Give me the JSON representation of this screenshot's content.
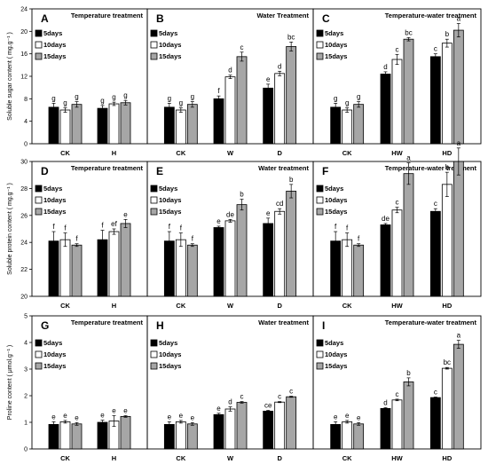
{
  "chart_data": [
    {
      "type": "bar",
      "series": [
        {
          "name": "5days"
        },
        {
          "name": "10days"
        },
        {
          "name": "15days"
        }
      ],
      "ylabel": "Soluble sugar content ( mg.g⁻¹ )",
      "ylim": [
        0,
        24
      ],
      "yticks": [
        0,
        4,
        8,
        12,
        16,
        20,
        24
      ],
      "panels": [
        {
          "label": "A",
          "title": "Temperature treatment",
          "legend": "top-left",
          "categories": [
            "CK",
            "H"
          ],
          "values": [
            [
              6.5,
              6.0,
              7.0
            ],
            [
              6.3,
              7.1,
              7.3
            ]
          ],
          "errors": [
            [
              0.7,
              0.4,
              0.5
            ],
            [
              0.5,
              0.3,
              0.4
            ]
          ],
          "letters": [
            [
              "g",
              "g",
              "g"
            ],
            [
              "g",
              "g",
              "g"
            ]
          ]
        },
        {
          "label": "B",
          "title": "Water Treatment",
          "legend": "top-left",
          "categories": [
            "CK",
            "W",
            "D"
          ],
          "values": [
            [
              6.5,
              6.0,
              7.0
            ],
            [
              8.0,
              11.9,
              15.5
            ],
            [
              9.9,
              12.5,
              17.3
            ]
          ],
          "errors": [
            [
              0.7,
              0.4,
              0.5
            ],
            [
              0.5,
              0.3,
              0.8
            ],
            [
              0.7,
              0.4,
              0.8
            ]
          ],
          "letters": [
            [
              "g",
              "g",
              "g"
            ],
            [
              "f",
              "d",
              "c"
            ],
            [
              "e",
              "d",
              "bc"
            ]
          ]
        },
        {
          "label": "C",
          "title": "Temperature-water treatment",
          "legend": "top-left",
          "categories": [
            "CK",
            "HW",
            "HD"
          ],
          "values": [
            [
              6.5,
              6.0,
              7.0
            ],
            [
              12.4,
              15.0,
              18.6
            ],
            [
              15.5,
              17.9,
              20.2
            ]
          ],
          "errors": [
            [
              0.7,
              0.4,
              0.5
            ],
            [
              0.4,
              0.9,
              0.3
            ],
            [
              0.5,
              0.7,
              1.2
            ]
          ],
          "letters": [
            [
              "g",
              "g",
              "g"
            ],
            [
              "d",
              "c",
              "bc"
            ],
            [
              "c",
              "b",
              "a"
            ]
          ]
        }
      ]
    },
    {
      "type": "bar",
      "series": [
        {
          "name": "5days"
        },
        {
          "name": "10days"
        },
        {
          "name": "15days"
        }
      ],
      "ylabel": "Soluble protein content ( mg.g⁻¹ )",
      "ylim": [
        20,
        30
      ],
      "yticks": [
        20,
        22,
        24,
        26,
        28,
        30
      ],
      "panels": [
        {
          "label": "D",
          "title": "Temperature treatment",
          "legend": "left",
          "categories": [
            "CK",
            "H"
          ],
          "values": [
            [
              24.1,
              24.2,
              23.8
            ],
            [
              24.2,
              24.8,
              25.4
            ]
          ],
          "errors": [
            [
              0.7,
              0.5,
              0.1
            ],
            [
              0.7,
              0.2,
              0.3
            ]
          ],
          "letters": [
            [
              "f",
              "f",
              "f"
            ],
            [
              "f",
              "ef",
              "e"
            ]
          ]
        },
        {
          "label": "E",
          "title": "Water treatment",
          "legend": "left",
          "categories": [
            "CK",
            "W",
            "D"
          ],
          "values": [
            [
              24.1,
              24.2,
              23.8
            ],
            [
              25.1,
              25.6,
              26.8
            ],
            [
              25.4,
              26.3,
              27.8
            ]
          ],
          "errors": [
            [
              0.7,
              0.5,
              0.1
            ],
            [
              0.1,
              0.1,
              0.4
            ],
            [
              0.4,
              0.2,
              0.5
            ]
          ],
          "letters": [
            [
              "f",
              "f",
              "f"
            ],
            [
              "e",
              "de",
              "b"
            ],
            [
              "e",
              "cd",
              "b"
            ]
          ]
        },
        {
          "label": "F",
          "title": "Temperature-water treatment",
          "legend": "left",
          "categories": [
            "CK",
            "HW",
            "HD"
          ],
          "values": [
            [
              24.1,
              24.2,
              23.8
            ],
            [
              25.3,
              26.4,
              29.1
            ],
            [
              26.3,
              28.3,
              30.0
            ]
          ],
          "errors": [
            [
              0.7,
              0.5,
              0.1
            ],
            [
              0.1,
              0.2,
              0.8
            ],
            [
              0.2,
              0.9,
              1.0
            ]
          ],
          "letters": [
            [
              "f",
              "f",
              "f"
            ],
            [
              "de",
              "c",
              "a"
            ],
            [
              "c",
              "b",
              "a"
            ]
          ]
        }
      ]
    },
    {
      "type": "bar",
      "series": [
        {
          "name": "5days"
        },
        {
          "name": "10days"
        },
        {
          "name": "15days"
        }
      ],
      "ylabel": "Proline content ( μmol.g⁻¹ )",
      "ylim": [
        0,
        5
      ],
      "yticks": [
        0,
        1,
        2,
        3,
        4,
        5
      ],
      "panels": [
        {
          "label": "G",
          "title": "Temperature treatment",
          "legend": "left",
          "categories": [
            "CK",
            "H"
          ],
          "values": [
            [
              0.92,
              1.02,
              0.94
            ],
            [
              1.0,
              1.05,
              1.22
            ]
          ],
          "errors": [
            [
              0.1,
              0.05,
              0.05
            ],
            [
              0.08,
              0.2,
              0.03
            ]
          ],
          "letters": [
            [
              "e",
              "e",
              "e"
            ],
            [
              "e",
              "e",
              "e"
            ]
          ]
        },
        {
          "label": "H",
          "title": "Water treatment",
          "legend": "left",
          "categories": [
            "CK",
            "W",
            "D"
          ],
          "values": [
            [
              0.92,
              1.02,
              0.94
            ],
            [
              1.29,
              1.5,
              1.75
            ],
            [
              1.42,
              1.76,
              1.96
            ]
          ],
          "errors": [
            [
              0.1,
              0.05,
              0.05
            ],
            [
              0.05,
              0.08,
              0.03
            ],
            [
              0.03,
              0.02,
              0.02
            ]
          ],
          "letters": [
            [
              "e",
              "e",
              "e"
            ],
            [
              "e",
              "d",
              "c"
            ],
            [
              "ce",
              "c",
              "c"
            ]
          ]
        },
        {
          "label": "I",
          "title": "Temperature-water treatment",
          "legend": "left",
          "categories": [
            "CK",
            "HW",
            "HD"
          ],
          "values": [
            [
              0.92,
              1.02,
              0.94
            ],
            [
              1.52,
              1.84,
              2.52
            ],
            [
              1.93,
              3.03,
              3.93
            ]
          ],
          "errors": [
            [
              0.1,
              0.05,
              0.05
            ],
            [
              0.03,
              0.03,
              0.15
            ],
            [
              0.02,
              0.03,
              0.15
            ]
          ],
          "letters": [
            [
              "e",
              "e",
              "e"
            ],
            [
              "d",
              "c",
              "b"
            ],
            [
              "c",
              "bc",
              "a"
            ]
          ]
        }
      ]
    }
  ],
  "colors": {
    "s1": "#000000",
    "s2": "#ffffff",
    "s3": "#a6a6a6"
  }
}
